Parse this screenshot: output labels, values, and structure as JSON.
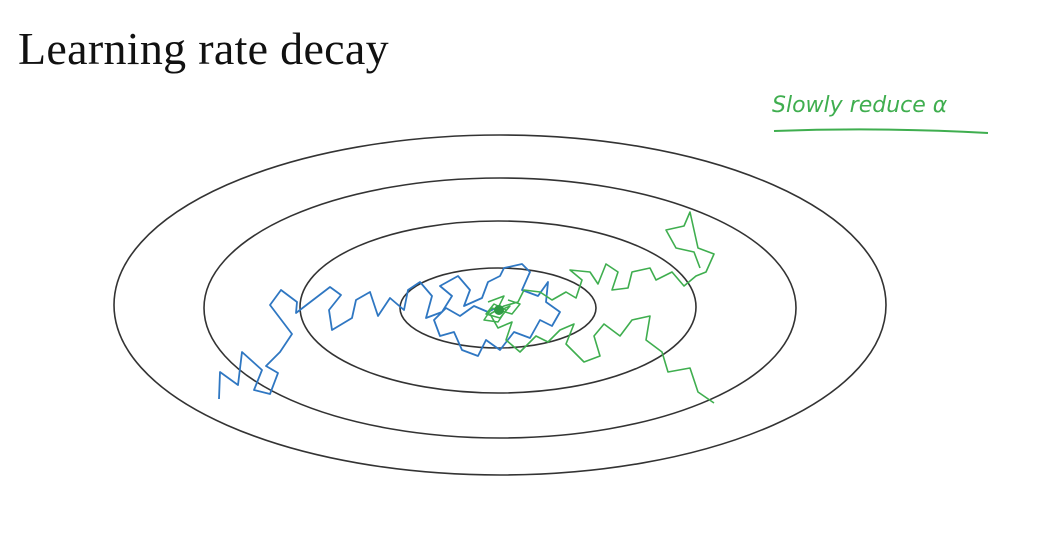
{
  "slide": {
    "title": "Learning rate decay",
    "annotation": "Slowly reduce α"
  },
  "colors": {
    "contour": "#333333",
    "path_constant_lr": "#2f77c2",
    "path_decaying_lr": "#3fae4f",
    "annotation": "#3fae4f"
  }
}
